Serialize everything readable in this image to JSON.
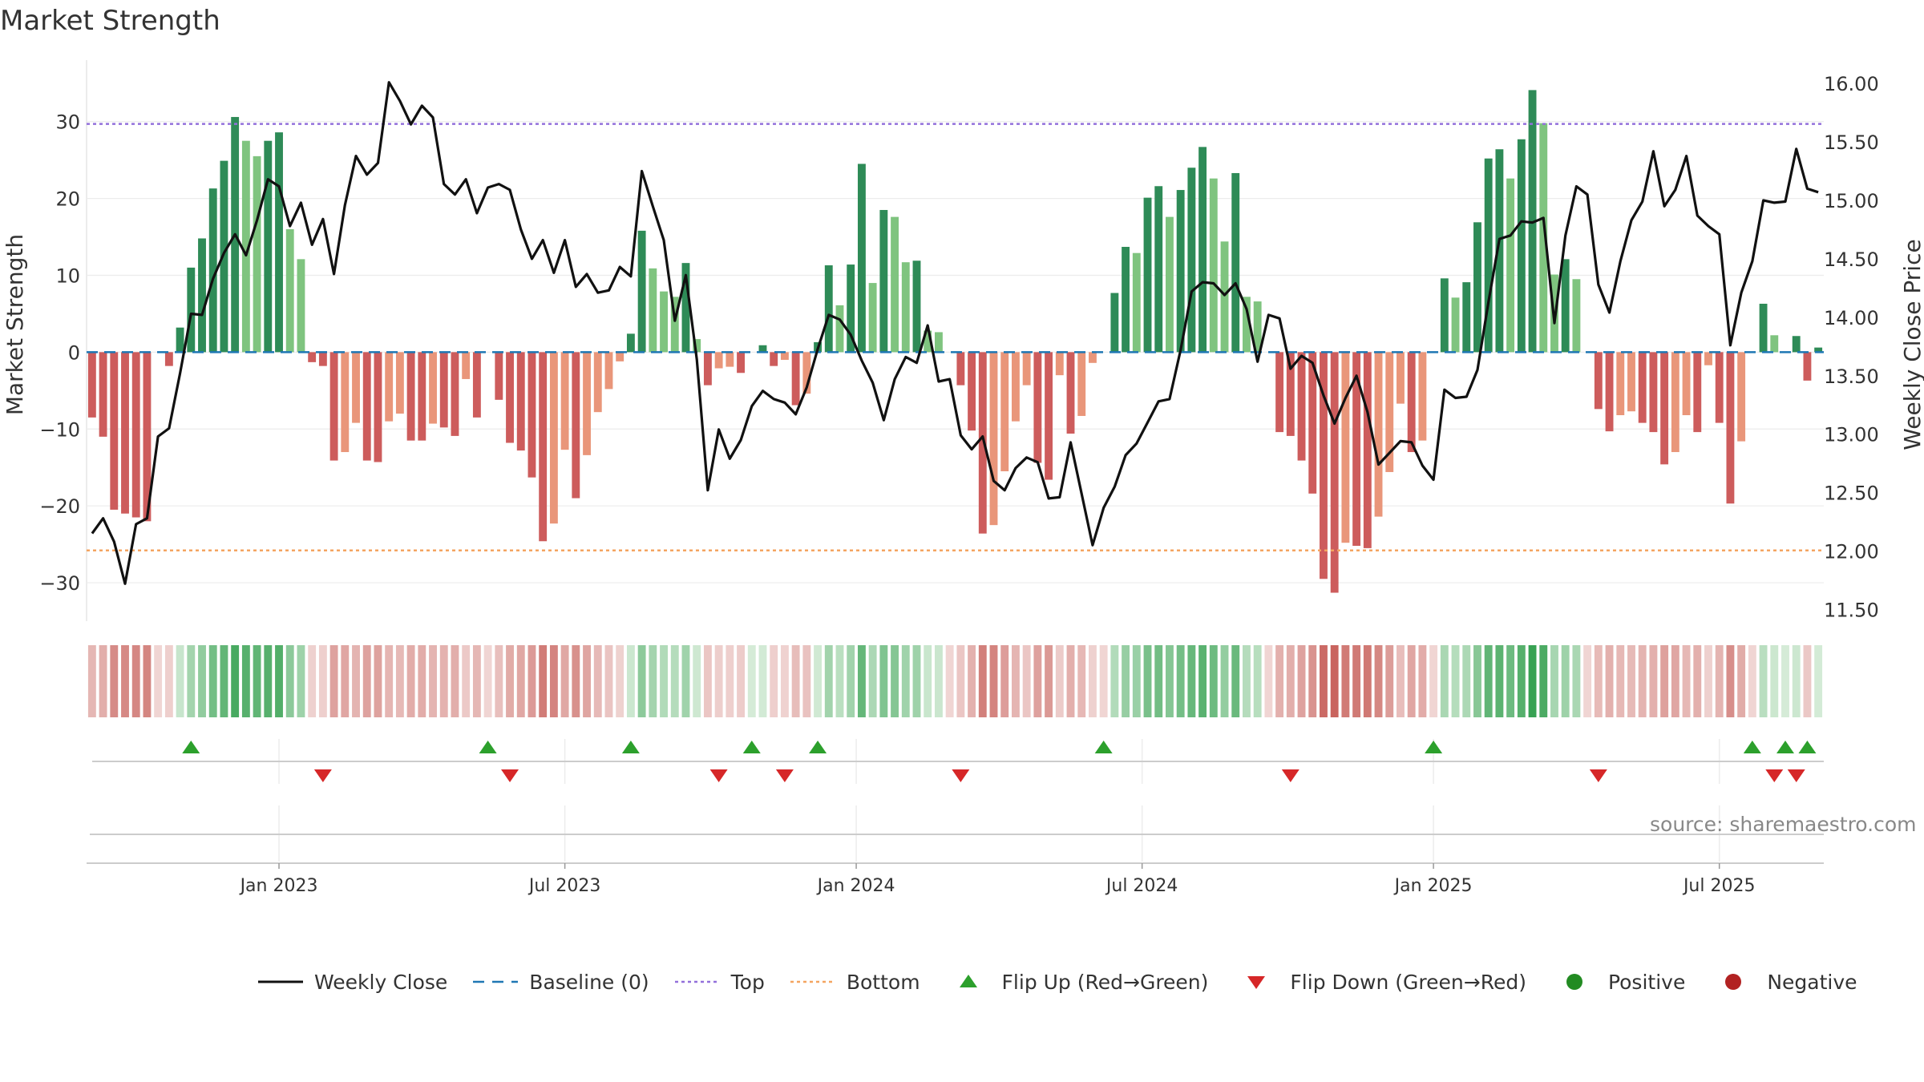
{
  "title": "Market Strength",
  "source_text": "source: sharemaestro.com",
  "colors": {
    "pos_strong": "#2e8b57",
    "pos_light": "#7fc47f",
    "neg_strong": "#cd5c5c",
    "neg_light": "#e9967a",
    "line": "#111111",
    "baseline": "#1f77b4",
    "top": "#9370db",
    "bottom": "#f4a460",
    "flip_up": "#2ca02c",
    "flip_down": "#d62728",
    "positive": "#228b22",
    "negative": "#b22222"
  },
  "legend": [
    {
      "label": "Weekly Close",
      "kind": "line",
      "color": "#111111"
    },
    {
      "label": "Baseline (0)",
      "kind": "dash",
      "color": "#1f77b4"
    },
    {
      "label": "Top",
      "kind": "dot",
      "color": "#9370db"
    },
    {
      "label": "Bottom",
      "kind": "dot",
      "color": "#f4a460"
    },
    {
      "label": "Flip Up (Red→Green)",
      "kind": "tri-up",
      "color": "#2ca02c"
    },
    {
      "label": "Flip Down (Green→Red)",
      "kind": "tri-down",
      "color": "#d62728"
    },
    {
      "label": "Positive",
      "kind": "circle",
      "color": "#228b22"
    },
    {
      "label": "Negative",
      "kind": "circle",
      "color": "#b22222"
    }
  ],
  "chart_data": {
    "type": "bar",
    "title": "Market Strength",
    "ylabel": "Market Strength",
    "y2label": "Weekly Close Price",
    "ylim": [
      -35,
      38
    ],
    "y2lim": [
      11.4,
      16.2
    ],
    "yticks": [
      -30,
      -20,
      -10,
      0,
      10,
      20,
      30
    ],
    "ytick_labels": [
      "−30",
      "−20",
      "−10",
      "0",
      "10",
      "20",
      "30"
    ],
    "y2ticks": [
      11.5,
      12.0,
      12.5,
      13.0,
      13.5,
      14.0,
      14.5,
      15.0,
      15.5,
      16.0
    ],
    "y2tick_labels": [
      "11.50",
      "12.00",
      "12.50",
      "13.00",
      "13.50",
      "14.00",
      "14.50",
      "15.00",
      "15.50",
      "16.00"
    ],
    "xtick_labels": [
      "Jan 2023",
      "Jul 2023",
      "Jan 2024",
      "Jul 2024",
      "Jan 2025",
      "Jul 2025"
    ],
    "xtick_weeks": [
      17,
      43,
      69.5,
      95.5,
      122,
      148
    ],
    "top_threshold": 29.7,
    "bottom_threshold": -25.8,
    "baseline": 0,
    "weeks": 158,
    "strength": [
      -8.5,
      -11,
      -20.5,
      -21,
      -21.5,
      -22,
      -0.3,
      -1.8,
      3.2,
      11,
      14.8,
      21.3,
      24.9,
      30.6,
      27.5,
      25.5,
      27.5,
      28.6,
      16,
      12.1,
      -1.3,
      -1.8,
      -14.1,
      -13,
      -9.2,
      -14.1,
      -14.3,
      -9,
      -8,
      -11.5,
      -11.5,
      -9.3,
      -9.8,
      -10.9,
      -3.5,
      -8.5,
      -0.3,
      -6.2,
      -11.8,
      -12.8,
      -16.3,
      -24.6,
      -22.3,
      -12.7,
      -19,
      -13.4,
      -7.8,
      -4.8,
      -1.2,
      2.4,
      15.8,
      10.9,
      7.9,
      7.2,
      11.6,
      1.7,
      -4.3,
      -2.1,
      -1.9,
      -2.7,
      0.3,
      0.9,
      -1.8,
      -1,
      -6.9,
      -5.4,
      1.3,
      11.3,
      6.1,
      11.4,
      24.5,
      9,
      18.5,
      17.6,
      11.7,
      11.9,
      2.8,
      2.6,
      -0.3,
      -4.3,
      -10.2,
      -23.6,
      -22.5,
      -15.5,
      -9,
      -4.3,
      -14.4,
      -16.6,
      -3,
      -10.6,
      -8.3,
      -1.4,
      -0.3,
      7.7,
      13.7,
      12.9,
      20.1,
      21.6,
      17.6,
      21.1,
      24,
      26.7,
      22.6,
      14.4,
      23.3,
      7.2,
      6.6,
      -0.3,
      -10.4,
      -10.9,
      -14.1,
      -18.4,
      -29.5,
      -31.3,
      -24.8,
      -25.2,
      -25.5,
      -21.4,
      -15.6,
      -6.7,
      -13,
      -11.5,
      -0.3,
      9.6,
      7.1,
      9.1,
      16.9,
      25.2,
      26.4,
      22.6,
      27.7,
      34.1,
      29.8,
      10.1,
      12.1,
      9.5,
      -0.3,
      -7.4,
      -10.3,
      -8.2,
      -7.7,
      -9.2,
      -10.4,
      -14.6,
      -13,
      -8.2,
      -10.4,
      -1.7,
      -9.2,
      -19.7,
      -11.6,
      -0.3,
      6.3,
      2.2,
      0.3,
      2.1,
      -3.7,
      0.6
    ],
    "close": [
      12.15,
      12.28,
      12.08,
      11.72,
      12.23,
      12.28,
      12.98,
      13.05,
      13.52,
      14.03,
      14.02,
      14.33,
      14.55,
      14.71,
      14.53,
      14.83,
      15.18,
      15.12,
      14.78,
      14.98,
      14.62,
      14.84,
      14.37,
      14.96,
      15.38,
      15.22,
      15.32,
      16.01,
      15.85,
      15.65,
      15.81,
      15.71,
      15.14,
      15.05,
      15.18,
      14.89,
      15.11,
      15.14,
      15.09,
      14.75,
      14.5,
      14.66,
      14.38,
      14.66,
      14.26,
      14.37,
      14.21,
      14.23,
      14.43,
      14.35,
      15.25,
      14.95,
      14.66,
      13.97,
      14.36,
      13.64,
      12.52,
      13.04,
      12.79,
      12.95,
      13.24,
      13.37,
      13.3,
      13.27,
      13.17,
      13.4,
      13.73,
      14.02,
      13.98,
      13.85,
      13.63,
      13.44,
      13.12,
      13.47,
      13.66,
      13.61,
      13.93,
      13.45,
      13.47,
      12.99,
      12.87,
      12.98,
      12.6,
      12.52,
      12.71,
      12.8,
      12.76,
      12.45,
      12.46,
      12.93,
      12.49,
      12.05,
      12.37,
      12.55,
      12.82,
      12.92,
      13.1,
      13.28,
      13.3,
      13.72,
      14.22,
      14.3,
      14.29,
      14.19,
      14.29,
      14.07,
      13.62,
      14.02,
      13.99,
      13.56,
      13.67,
      13.61,
      13.33,
      13.09,
      13.31,
      13.5,
      13.19,
      12.74,
      12.84,
      12.94,
      12.93,
      12.73,
      12.61,
      13.38,
      13.31,
      13.32,
      13.55,
      14.13,
      14.67,
      14.7,
      14.82,
      14.81,
      14.85,
      13.95,
      14.7,
      15.12,
      15.05,
      14.28,
      14.04,
      14.48,
      14.83,
      14.99,
      15.42,
      14.95,
      15.09,
      15.38,
      14.87,
      14.78,
      14.71,
      13.76,
      14.21,
      14.48,
      15.0,
      14.98,
      14.99,
      15.44,
      15.1,
      15.07
    ],
    "flip_up_weeks": [
      9,
      36,
      49,
      60,
      66,
      92,
      122,
      151,
      154,
      156
    ],
    "flip_down_weeks": [
      21,
      38,
      57,
      63,
      79,
      109,
      137,
      153,
      155
    ]
  }
}
